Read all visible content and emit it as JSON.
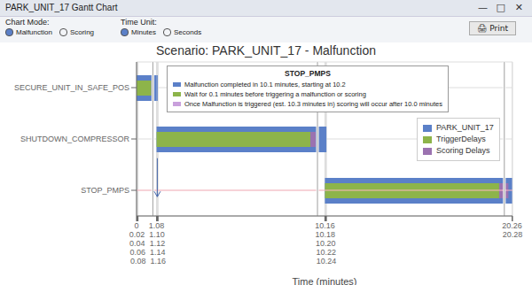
{
  "chart_data": {
    "type": "bar",
    "orientation": "horizontal",
    "title": "Scenario: PARK_UNIT_17 - Malfunction",
    "x_label": "Time (minutes)",
    "categories": [
      "SECURE_UNIT_IN_SAFE_POS",
      "SHUTDOWN_COMPRESSOR",
      "STOP_PMPS"
    ],
    "series": [
      {
        "name": "PARK_UNIT_17",
        "color": "#5B80C8",
        "starts": [
          0,
          1.08,
          10.16
        ],
        "values": [
          1.08,
          9.16,
          10.1
        ]
      },
      {
        "name": "TriggerDelays",
        "color": "#8DB44A",
        "starts": [
          0,
          1.08,
          10.16
        ],
        "values": [
          0.8,
          8.3,
          9.4
        ]
      },
      {
        "name": "Scoring Delays",
        "color": "#9B72B0",
        "starts": [
          0.8,
          9.38,
          19.56
        ],
        "values": [
          0.1,
          0.3,
          0.5
        ]
      },
      {
        "name": "PARK_UNIT_17",
        "color": "#5B80C8",
        "starts": [
          1.08,
          9.68,
          null
        ],
        "values": [
          0.06,
          0.56,
          null
        ]
      }
    ],
    "xlim": [
      0,
      20.28
    ],
    "xticks": [
      0,
      0.02,
      0.04,
      0.06,
      0.08,
      1.08,
      {
        "value": 1.1,
        "label": "1.10"
      },
      1.12,
      1.14,
      1.16,
      10.16,
      10.18,
      {
        "value": 10.2,
        "label": "10.20"
      },
      10.22,
      10.24,
      20.26,
      20.28
    ],
    "grid": true,
    "legend": "upper right",
    "reference_line": {
      "category": "STOP_PMPS",
      "color": "#FFB6C1"
    },
    "breaks": [
      0.88,
      9.76,
      19.84
    ],
    "arrow": {
      "x": 1.12,
      "y_from": 1.25,
      "y_to": 1.75
    },
    "annotations": [
      {
        "title": "STOP_PMPS",
        "lines": [
          {
            "color": "#5B80C8",
            "text": "Malfunction completed in 10.1 minutes, starting at 10.2"
          },
          {
            "color": "#8DB44A",
            "text": "Wait for 0.1 minutes before triggering a malfunction or scoring"
          },
          {
            "color": "#C9A0DC",
            "text": "Once Malfunction is triggered (est. 10.3 minutes in) scoring will occur after 10.0 minutes"
          }
        ]
      }
    ],
    "window": {
      "title": "PARK_UNIT_17 Gantt Chart",
      "buttons": [
        "—",
        "□",
        "✕"
      ],
      "controls": [
        {
          "label": "Chart Mode:",
          "options": [
            {
              "text": "Malfunction",
              "selected": true
            },
            {
              "text": "Scoring",
              "selected": false
            }
          ]
        },
        {
          "label": "Time Unit:",
          "options": [
            {
              "text": "Minutes",
              "selected": true
            },
            {
              "text": "Seconds",
              "selected": false
            }
          ]
        }
      ],
      "button": "🖨 Print"
    }
  }
}
